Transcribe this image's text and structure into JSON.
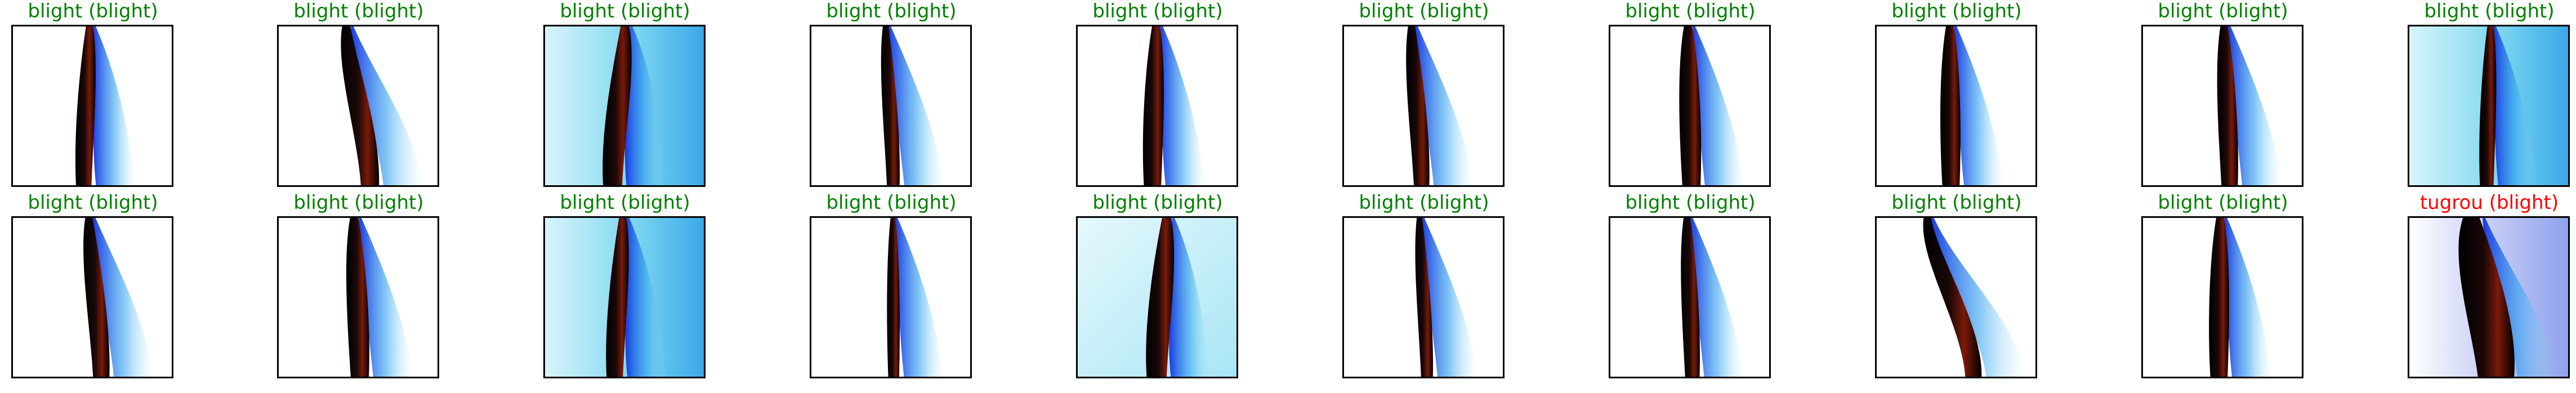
{
  "colors": {
    "correct": "#008000",
    "incorrect": "#ff0000",
    "frame": "#000000"
  },
  "rows": [
    [
      {
        "label": "blight (blight)",
        "correct": true,
        "bg": "white"
      },
      {
        "label": "blight (blight)",
        "correct": true,
        "bg": "white"
      },
      {
        "label": "blight (blight)",
        "correct": true,
        "bg": "cyan"
      },
      {
        "label": "blight (blight)",
        "correct": true,
        "bg": "white"
      },
      {
        "label": "blight (blight)",
        "correct": true,
        "bg": "white"
      },
      {
        "label": "blight (blight)",
        "correct": true,
        "bg": "white"
      },
      {
        "label": "blight (blight)",
        "correct": true,
        "bg": "white"
      },
      {
        "label": "blight (blight)",
        "correct": true,
        "bg": "white"
      },
      {
        "label": "blight (blight)",
        "correct": true,
        "bg": "white"
      },
      {
        "label": "blight (blight)",
        "correct": true,
        "bg": "cyan"
      }
    ],
    [
      {
        "label": "blight (blight)",
        "correct": true,
        "bg": "white"
      },
      {
        "label": "blight (blight)",
        "correct": true,
        "bg": "white"
      },
      {
        "label": "blight (blight)",
        "correct": true,
        "bg": "cyan"
      },
      {
        "label": "blight (blight)",
        "correct": true,
        "bg": "white"
      },
      {
        "label": "blight (blight)",
        "correct": true,
        "bg": "light"
      },
      {
        "label": "blight (blight)",
        "correct": true,
        "bg": "white"
      },
      {
        "label": "blight (blight)",
        "correct": true,
        "bg": "white"
      },
      {
        "label": "blight (blight)",
        "correct": true,
        "bg": "white"
      },
      {
        "label": "blight (blight)",
        "correct": true,
        "bg": "white"
      },
      {
        "label": "tugrou (blight)",
        "correct": false,
        "bg": "lavender"
      }
    ]
  ]
}
